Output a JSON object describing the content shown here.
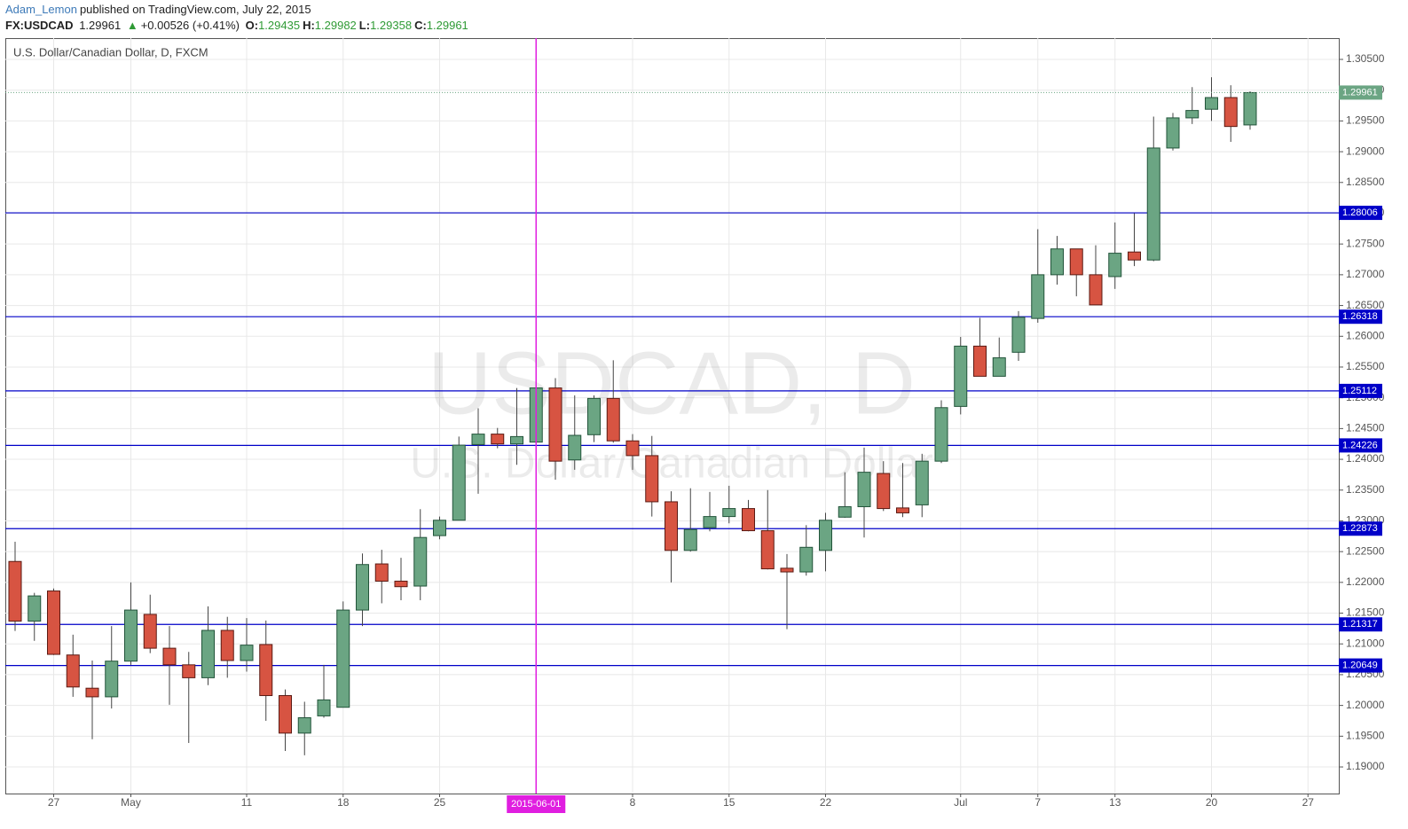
{
  "header": {
    "author": "Adam_Lemon",
    "published": "published on TradingView.com, July 22, 2015",
    "symbol": "FX:USDCAD",
    "last": "1.29961",
    "change_arrow": "▲",
    "change": "+0.00526 (+0.41%)",
    "ohlc": [
      {
        "label": "O:",
        "value": "1.29435"
      },
      {
        "label": "H:",
        "value": "1.29982"
      },
      {
        "label": "L:",
        "value": "1.29358"
      },
      {
        "label": "C:",
        "value": "1.29961"
      }
    ]
  },
  "chart_data": {
    "type": "candlestick",
    "legend_title": "U.S. Dollar/Canadian Dollar, D, FXCM",
    "watermark": "USDCAD, D",
    "watermark_subtitle": "U.S. Dollar/Canadian Dollar",
    "categories": [
      null,
      null,
      "27",
      null,
      null,
      null,
      "May",
      null,
      null,
      null,
      null,
      null,
      "11",
      null,
      null,
      null,
      null,
      "18",
      null,
      null,
      null,
      null,
      "25",
      null,
      null,
      null,
      null,
      "2015-06-01",
      null,
      null,
      null,
      null,
      "8",
      null,
      null,
      null,
      null,
      "15",
      null,
      null,
      null,
      null,
      "22",
      null,
      null,
      null,
      null,
      null,
      null,
      "Jul",
      null,
      null,
      null,
      "7",
      null,
      null,
      null,
      "13",
      null,
      null,
      null,
      null,
      "20",
      null,
      null,
      null,
      null,
      "27",
      null
    ],
    "open": [
      1.2234,
      1.2137,
      1.2186,
      1.2082,
      1.2028,
      1.2014,
      1.2072,
      1.2148,
      1.2093,
      1.2066,
      1.2045,
      1.2122,
      1.2073,
      1.2099,
      1.2016,
      1.1955,
      1.1983,
      1.1997,
      1.2155,
      1.223,
      1.2202,
      1.2194,
      1.2276,
      1.2301,
      1.2424,
      1.2441,
      1.2425,
      1.2428,
      1.2516,
      1.2399,
      1.244,
      1.2499,
      1.243,
      1.2406,
      1.2331,
      1.2252,
      1.2289,
      1.2307,
      1.232,
      1.2284,
      1.2223,
      1.2217,
      1.2252,
      1.2306,
      1.2323,
      1.2377,
      1.2321,
      1.2326,
      1.2397,
      1.2486,
      1.2584,
      1.2535,
      1.2574,
      1.2629,
      1.27,
      1.2742,
      1.27,
      1.2697,
      1.2737,
      1.2724,
      1.2906,
      1.2955,
      1.2969,
      1.2988,
      1.29435,
      null,
      null,
      null,
      null
    ],
    "high": [
      1.2266,
      1.2183,
      1.219,
      1.2115,
      1.2073,
      1.2129,
      1.22,
      1.218,
      1.2129,
      1.2087,
      1.2161,
      1.2144,
      1.2142,
      1.2138,
      1.2026,
      1.2006,
      1.2066,
      1.2169,
      1.2247,
      1.2253,
      1.224,
      1.2319,
      1.2307,
      1.2437,
      1.2483,
      1.2451,
      1.2516,
      1.2522,
      1.2532,
      1.2504,
      1.2504,
      1.2561,
      1.2441,
      1.2438,
      1.2348,
      1.2353,
      1.2347,
      1.2357,
      1.2334,
      1.235,
      1.2246,
      1.2293,
      1.2313,
      1.2379,
      1.2419,
      1.2397,
      1.2394,
      1.2409,
      1.2496,
      1.2599,
      1.263,
      1.2598,
      1.2641,
      1.2774,
      1.2763,
      1.2742,
      1.2748,
      1.2785,
      1.28,
      1.2957,
      1.2963,
      1.3005,
      1.3021,
      1.3008,
      1.29982,
      null,
      null,
      null,
      null
    ],
    "low": [
      1.2121,
      1.2105,
      1.2082,
      1.2014,
      1.1945,
      1.1995,
      1.2066,
      1.2085,
      1.2001,
      1.1939,
      1.2033,
      1.2045,
      1.2055,
      1.1975,
      1.1926,
      1.1919,
      1.198,
      1.1997,
      1.2129,
      1.2166,
      1.2171,
      1.2171,
      1.227,
      1.2301,
      1.2344,
      1.2418,
      1.2391,
      1.2428,
      1.2367,
      1.2383,
      1.2428,
      1.2427,
      1.2383,
      1.2307,
      1.22,
      1.225,
      1.2283,
      1.2296,
      1.2283,
      1.2221,
      1.2124,
      1.2211,
      1.2218,
      1.2305,
      1.2273,
      1.2316,
      1.2306,
      1.2306,
      1.2394,
      1.2473,
      1.2535,
      1.2535,
      1.256,
      1.2622,
      1.2684,
      1.2665,
      1.2651,
      1.2677,
      1.2714,
      1.2722,
      1.2902,
      1.2945,
      1.295,
      1.2916,
      1.29358,
      null,
      null,
      null,
      null
    ],
    "close": [
      1.2137,
      1.2178,
      1.2083,
      1.203,
      1.2014,
      1.2072,
      1.2155,
      1.2093,
      1.2066,
      1.2045,
      1.2122,
      1.2073,
      1.2098,
      1.2016,
      1.1955,
      1.198,
      1.2009,
      1.2155,
      1.2229,
      1.2202,
      1.2193,
      1.2273,
      1.2301,
      1.2423,
      1.2441,
      1.2425,
      1.2437,
      1.2516,
      1.2397,
      1.2439,
      1.2499,
      1.243,
      1.2406,
      1.2331,
      1.2252,
      1.2286,
      1.2307,
      1.232,
      1.2284,
      1.2222,
      1.2217,
      1.2257,
      1.2301,
      1.2323,
      1.2379,
      1.232,
      1.2313,
      1.2397,
      1.2484,
      1.2584,
      1.2535,
      1.2565,
      1.2631,
      1.27,
      1.2742,
      1.27,
      1.2651,
      1.2735,
      1.2724,
      1.2906,
      1.2955,
      1.2967,
      1.2988,
      1.2941,
      1.29961,
      null,
      null,
      null,
      null
    ],
    "up_color": "#6ba583",
    "down_color": "#d75442",
    "ylim": [
      1.18568,
      1.30846
    ],
    "yticks": [
      {
        "value": 1.305,
        "label": "1.30500"
      },
      {
        "value": 1.3,
        "label": "1.30000"
      },
      {
        "value": 1.295,
        "label": "1.29500"
      },
      {
        "value": 1.29,
        "label": "1.29000"
      },
      {
        "value": 1.285,
        "label": "1.28500"
      },
      {
        "value": 1.28,
        "label": "1.28000"
      },
      {
        "value": 1.275,
        "label": "1.27500"
      },
      {
        "value": 1.27,
        "label": "1.27000"
      },
      {
        "value": 1.265,
        "label": "1.26500"
      },
      {
        "value": 1.26,
        "label": "1.26000"
      },
      {
        "value": 1.255,
        "label": "1.25500"
      },
      {
        "value": 1.25,
        "label": "1.25000"
      },
      {
        "value": 1.245,
        "label": "1.24500"
      },
      {
        "value": 1.24,
        "label": "1.24000"
      },
      {
        "value": 1.235,
        "label": "1.23500"
      },
      {
        "value": 1.23,
        "label": "1.23000"
      },
      {
        "value": 1.225,
        "label": "1.22500"
      },
      {
        "value": 1.22,
        "label": "1.22000"
      },
      {
        "value": 1.215,
        "label": "1.21500"
      },
      {
        "value": 1.21,
        "label": "1.21000"
      },
      {
        "value": 1.205,
        "label": "1.20500"
      },
      {
        "value": 1.2,
        "label": "1.20000"
      },
      {
        "value": 1.195,
        "label": "1.19500"
      },
      {
        "value": 1.19,
        "label": "1.19000"
      }
    ],
    "grid": true,
    "levels": [
      1.28006,
      1.26318,
      1.25112,
      1.24226,
      1.22873,
      1.21317,
      1.20649
    ],
    "level_color": "#0000c8",
    "last_price": 1.29961,
    "crosshair_color": "#e01ee0"
  }
}
